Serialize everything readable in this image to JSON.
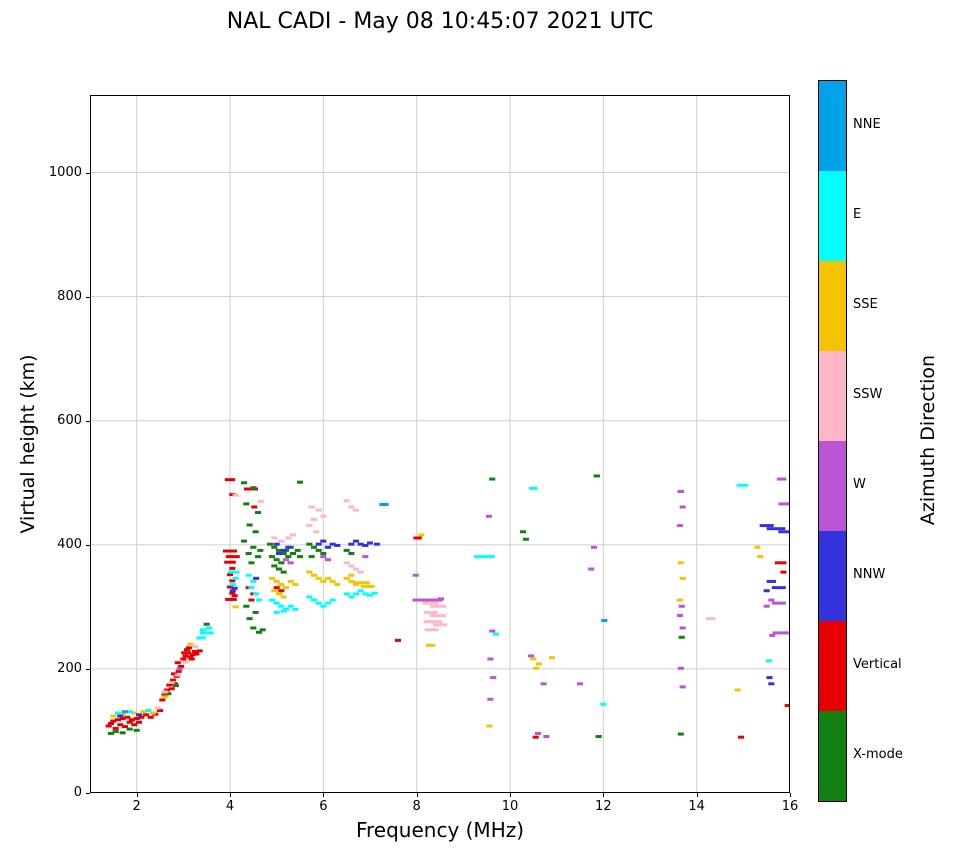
{
  "title": "NAL CADI - May 08 10:45:07 2021 UTC",
  "chart_data": {
    "type": "scatter",
    "title": "NAL CADI - May 08 10:45:07 2021 UTC",
    "xlabel": "Frequency (MHz)",
    "ylabel": "Virtual height (km)",
    "xlim": [
      1,
      16
    ],
    "ylim": [
      0,
      1125
    ],
    "xticks": [
      2,
      4,
      6,
      8,
      10,
      12,
      14,
      16
    ],
    "yticks": [
      0,
      200,
      400,
      600,
      800,
      1000
    ],
    "grid": true,
    "grid_color": "#cfcfcf",
    "marker": "horizontal-dash",
    "colorbar": {
      "label": "Azimuth Direction",
      "categories": [
        {
          "key": "NNE",
          "label": "NNE",
          "color": "#00A2E8"
        },
        {
          "key": "E",
          "label": "E",
          "color": "#00FFFF"
        },
        {
          "key": "SSE",
          "label": "SSE",
          "color": "#F5C400"
        },
        {
          "key": "SSW",
          "label": "SSW",
          "color": "#FFB6C8"
        },
        {
          "key": "W",
          "label": "W",
          "color": "#BA55D3"
        },
        {
          "key": "NNW",
          "label": "NNW",
          "color": "#3333DD"
        },
        {
          "key": "V",
          "label": "Vertical",
          "color": "#E80000"
        },
        {
          "key": "X",
          "label": "X-mode",
          "color": "#128012"
        }
      ]
    },
    "points": [
      [
        1.4,
        108,
        "V"
      ],
      [
        1.45,
        112,
        "V"
      ],
      [
        1.5,
        116,
        "V"
      ],
      [
        1.55,
        104,
        "V"
      ],
      [
        1.6,
        118,
        "V"
      ],
      [
        1.65,
        110,
        "V"
      ],
      [
        1.7,
        120,
        "V"
      ],
      [
        1.75,
        107,
        "V"
      ],
      [
        1.8,
        122,
        "V"
      ],
      [
        1.85,
        114,
        "V"
      ],
      [
        1.9,
        118,
        "V"
      ],
      [
        1.95,
        110,
        "V"
      ],
      [
        2.0,
        120,
        "V"
      ],
      [
        2.05,
        114,
        "V"
      ],
      [
        2.1,
        122,
        "V"
      ],
      [
        2.2,
        126,
        "V"
      ],
      [
        2.3,
        122,
        "V"
      ],
      [
        2.4,
        127,
        "V"
      ],
      [
        2.5,
        133,
        "V"
      ],
      [
        2.55,
        150,
        "V"
      ],
      [
        2.6,
        158,
        "V"
      ],
      [
        2.65,
        166,
        "V"
      ],
      [
        2.7,
        174,
        "V"
      ],
      [
        2.75,
        168,
        "V"
      ],
      [
        2.78,
        182,
        "V"
      ],
      [
        2.82,
        176,
        "V"
      ],
      [
        2.86,
        188,
        "V"
      ],
      [
        2.9,
        196,
        "V"
      ],
      [
        2.95,
        204,
        "V"
      ],
      [
        2.88,
        210,
        "V"
      ],
      [
        2.8,
        192,
        "V"
      ],
      [
        3.0,
        216,
        "V"
      ],
      [
        3.05,
        221,
        "V"
      ],
      [
        3.1,
        226,
        "V"
      ],
      [
        3.15,
        219,
        "V"
      ],
      [
        3.2,
        223,
        "V"
      ],
      [
        3.25,
        228,
        "V"
      ],
      [
        3.08,
        231,
        "V"
      ],
      [
        3.02,
        226,
        "V"
      ],
      [
        3.18,
        216,
        "V"
      ],
      [
        3.28,
        224,
        "V"
      ],
      [
        3.35,
        229,
        "V"
      ],
      [
        3.12,
        234,
        "V"
      ],
      [
        4.0,
        505,
        "V",
        0.22
      ],
      [
        4.05,
        481,
        "V"
      ],
      [
        4.0,
        390,
        "V",
        0.3
      ],
      [
        4.06,
        381,
        "V",
        0.3
      ],
      [
        4.0,
        372,
        "V",
        0.25
      ],
      [
        4.05,
        362,
        "V"
      ],
      [
        4.0,
        352,
        "V"
      ],
      [
        4.05,
        342,
        "V"
      ],
      [
        4.0,
        332,
        "V"
      ],
      [
        4.05,
        322,
        "V"
      ],
      [
        4.02,
        312,
        "V",
        0.25
      ],
      [
        4.1,
        318,
        "V"
      ],
      [
        4.45,
        490,
        "V",
        0.3
      ],
      [
        4.52,
        461,
        "V"
      ],
      [
        4.4,
        331,
        "V"
      ],
      [
        4.5,
        321,
        "V"
      ],
      [
        4.46,
        311,
        "V"
      ],
      [
        5.0,
        331,
        "V"
      ],
      [
        5.1,
        326,
        "V"
      ],
      [
        7.6,
        246,
        "V"
      ],
      [
        8.02,
        411,
        "V",
        0.18
      ],
      [
        10.55,
        90,
        "V"
      ],
      [
        14.95,
        90,
        "V"
      ],
      [
        15.8,
        371,
        "V",
        0.25
      ],
      [
        15.86,
        356,
        "V"
      ],
      [
        15.95,
        141,
        "V"
      ],
      [
        1.45,
        96,
        "X"
      ],
      [
        1.55,
        99,
        "X"
      ],
      [
        1.7,
        97,
        "X"
      ],
      [
        1.85,
        103,
        "X"
      ],
      [
        2.0,
        101,
        "X"
      ],
      [
        2.68,
        160,
        "X"
      ],
      [
        2.84,
        173,
        "X"
      ],
      [
        3.5,
        272,
        "X"
      ],
      [
        4.3,
        500,
        "X"
      ],
      [
        4.5,
        492,
        "X"
      ],
      [
        4.35,
        466,
        "X"
      ],
      [
        4.6,
        452,
        "X"
      ],
      [
        4.42,
        432,
        "X"
      ],
      [
        4.55,
        421,
        "X"
      ],
      [
        4.3,
        406,
        "X"
      ],
      [
        4.5,
        396,
        "X"
      ],
      [
        4.65,
        391,
        "X"
      ],
      [
        4.4,
        386,
        "X"
      ],
      [
        4.6,
        381,
        "X"
      ],
      [
        4.46,
        371,
        "X"
      ],
      [
        4.35,
        301,
        "X"
      ],
      [
        4.55,
        291,
        "X"
      ],
      [
        4.42,
        281,
        "X"
      ],
      [
        4.5,
        266,
        "X"
      ],
      [
        4.62,
        259,
        "X"
      ],
      [
        4.7,
        263,
        "X"
      ],
      [
        4.86,
        401,
        "X"
      ],
      [
        4.95,
        396,
        "X"
      ],
      [
        5.05,
        391,
        "X"
      ],
      [
        5.15,
        386,
        "X"
      ],
      [
        4.9,
        381,
        "X"
      ],
      [
        5.0,
        376,
        "X"
      ],
      [
        5.1,
        371,
        "X"
      ],
      [
        5.2,
        391,
        "X"
      ],
      [
        5.3,
        396,
        "X"
      ],
      [
        4.95,
        366,
        "X"
      ],
      [
        5.05,
        361,
        "X"
      ],
      [
        5.25,
        381,
        "X"
      ],
      [
        5.35,
        386,
        "X"
      ],
      [
        5.45,
        391,
        "X"
      ],
      [
        5.5,
        381,
        "X"
      ],
      [
        5.15,
        356,
        "X"
      ],
      [
        5.5,
        501,
        "X"
      ],
      [
        5.7,
        401,
        "X"
      ],
      [
        5.8,
        396,
        "X"
      ],
      [
        5.9,
        391,
        "X"
      ],
      [
        6.0,
        386,
        "X"
      ],
      [
        5.75,
        381,
        "X"
      ],
      [
        6.5,
        391,
        "X"
      ],
      [
        6.6,
        386,
        "X"
      ],
      [
        9.62,
        506,
        "X"
      ],
      [
        10.28,
        421,
        "X"
      ],
      [
        10.34,
        409,
        "X"
      ],
      [
        11.86,
        511,
        "X",
        0.14
      ],
      [
        11.9,
        91,
        "X"
      ],
      [
        13.68,
        251,
        "X"
      ],
      [
        13.66,
        95,
        "X"
      ],
      [
        1.5,
        124,
        "SSE"
      ],
      [
        1.7,
        127,
        "SSE"
      ],
      [
        1.95,
        129,
        "SSE"
      ],
      [
        2.15,
        131,
        "SSE"
      ],
      [
        2.35,
        129,
        "SSE"
      ],
      [
        2.62,
        155,
        "SSE"
      ],
      [
        3.15,
        240,
        "SSE"
      ],
      [
        4.12,
        300,
        "SSE"
      ],
      [
        4.9,
        346,
        "SSE"
      ],
      [
        5.0,
        341,
        "SSE"
      ],
      [
        5.1,
        336,
        "SSE"
      ],
      [
        5.2,
        331,
        "SSE"
      ],
      [
        4.95,
        326,
        "SSE"
      ],
      [
        5.05,
        321,
        "SSE"
      ],
      [
        5.3,
        341,
        "SSE"
      ],
      [
        5.4,
        336,
        "SSE"
      ],
      [
        5.15,
        316,
        "SSE"
      ],
      [
        5.8,
        351,
        "SSE"
      ],
      [
        5.9,
        346,
        "SSE"
      ],
      [
        6.0,
        341,
        "SSE"
      ],
      [
        6.1,
        346,
        "SSE"
      ],
      [
        6.2,
        341,
        "SSE"
      ],
      [
        6.3,
        336,
        "SSE"
      ],
      [
        5.7,
        356,
        "SSE"
      ],
      [
        6.5,
        346,
        "SSE"
      ],
      [
        6.6,
        341,
        "SSE"
      ],
      [
        6.7,
        336,
        "SSE"
      ],
      [
        6.82,
        339,
        "SSE",
        0.35
      ],
      [
        6.95,
        333,
        "SSE",
        0.3
      ],
      [
        6.6,
        351,
        "SSE"
      ],
      [
        8.1,
        416,
        "SSE"
      ],
      [
        8.3,
        238,
        "SSE",
        0.2
      ],
      [
        9.56,
        108,
        "SSE"
      ],
      [
        10.5,
        216,
        "SSE"
      ],
      [
        10.56,
        201,
        "SSE"
      ],
      [
        10.62,
        208,
        "SSE"
      ],
      [
        10.9,
        218,
        "SSE"
      ],
      [
        13.66,
        371,
        "SSE"
      ],
      [
        13.7,
        346,
        "SSE"
      ],
      [
        13.64,
        311,
        "SSE"
      ],
      [
        14.88,
        166,
        "SSE"
      ],
      [
        15.3,
        396,
        "SSE"
      ],
      [
        15.36,
        381,
        "SSE"
      ],
      [
        2.45,
        137,
        "SSW"
      ],
      [
        2.6,
        163,
        "SSW"
      ],
      [
        2.75,
        178,
        "SSW"
      ],
      [
        2.88,
        190,
        "SSW"
      ],
      [
        3.05,
        211,
        "SSW"
      ],
      [
        3.25,
        236,
        "SSW"
      ],
      [
        4.12,
        480,
        "SSW"
      ],
      [
        4.66,
        470,
        "SSW"
      ],
      [
        5.1,
        406,
        "SSW"
      ],
      [
        5.25,
        411,
        "SSW"
      ],
      [
        5.35,
        416,
        "SSW"
      ],
      [
        4.95,
        411,
        "SSW"
      ],
      [
        5.7,
        431,
        "SSW"
      ],
      [
        5.8,
        441,
        "SSW"
      ],
      [
        5.9,
        456,
        "SSW"
      ],
      [
        5.75,
        461,
        "SSW"
      ],
      [
        6.0,
        446,
        "SSW"
      ],
      [
        5.85,
        421,
        "SSW"
      ],
      [
        6.5,
        471,
        "SSW"
      ],
      [
        6.6,
        461,
        "SSW"
      ],
      [
        6.7,
        456,
        "SSW"
      ],
      [
        6.5,
        371,
        "SSW"
      ],
      [
        6.6,
        366,
        "SSW"
      ],
      [
        6.7,
        361,
        "SSW"
      ],
      [
        6.8,
        356,
        "SSW"
      ],
      [
        8.3,
        306,
        "SSW",
        0.35
      ],
      [
        8.46,
        301,
        "SSW",
        0.35
      ],
      [
        8.3,
        291,
        "SSW",
        0.3
      ],
      [
        8.46,
        286,
        "SSW",
        0.35
      ],
      [
        8.35,
        276,
        "SSW",
        0.4
      ],
      [
        8.5,
        271,
        "SSW",
        0.3
      ],
      [
        8.32,
        263,
        "SSW",
        0.3
      ],
      [
        14.3,
        281,
        "SSW",
        0.2
      ],
      [
        1.6,
        129,
        "E"
      ],
      [
        1.85,
        131,
        "E"
      ],
      [
        2.25,
        133,
        "E"
      ],
      [
        3.38,
        250,
        "E",
        0.2
      ],
      [
        3.5,
        258,
        "E",
        0.3
      ],
      [
        3.42,
        263,
        "E"
      ],
      [
        3.55,
        266,
        "E"
      ],
      [
        4.08,
        356,
        "E",
        0.25
      ],
      [
        4.12,
        346,
        "E"
      ],
      [
        4.06,
        336,
        "E"
      ],
      [
        4.4,
        351,
        "E"
      ],
      [
        4.5,
        341,
        "E"
      ],
      [
        4.46,
        331,
        "E"
      ],
      [
        4.56,
        321,
        "E"
      ],
      [
        4.62,
        311,
        "E"
      ],
      [
        4.9,
        311,
        "E"
      ],
      [
        5.0,
        306,
        "E"
      ],
      [
        5.1,
        301,
        "E"
      ],
      [
        5.2,
        296,
        "E"
      ],
      [
        5.3,
        301,
        "E"
      ],
      [
        5.4,
        296,
        "E"
      ],
      [
        5.0,
        291,
        "E"
      ],
      [
        5.15,
        293,
        "E"
      ],
      [
        5.8,
        311,
        "E"
      ],
      [
        5.9,
        306,
        "E"
      ],
      [
        6.0,
        301,
        "E"
      ],
      [
        6.1,
        306,
        "E"
      ],
      [
        6.2,
        311,
        "E"
      ],
      [
        5.7,
        316,
        "E"
      ],
      [
        6.5,
        321,
        "E"
      ],
      [
        6.6,
        316,
        "E"
      ],
      [
        6.7,
        321,
        "E"
      ],
      [
        6.8,
        326,
        "E"
      ],
      [
        6.9,
        321,
        "E"
      ],
      [
        7.0,
        319,
        "E"
      ],
      [
        7.1,
        322,
        "E"
      ],
      [
        9.45,
        381,
        "E",
        0.45
      ],
      [
        9.7,
        256,
        "E"
      ],
      [
        10.5,
        491,
        "E",
        0.18
      ],
      [
        12.0,
        143,
        "E"
      ],
      [
        14.98,
        496,
        "E",
        0.25
      ],
      [
        15.55,
        213,
        "E"
      ],
      [
        2.92,
        200,
        "W"
      ],
      [
        5.2,
        376,
        "W"
      ],
      [
        5.3,
        371,
        "W"
      ],
      [
        6.0,
        381,
        "W"
      ],
      [
        6.1,
        376,
        "W"
      ],
      [
        6.9,
        381,
        "W"
      ],
      [
        7.98,
        351,
        "W"
      ],
      [
        8.06,
        311,
        "W",
        0.3
      ],
      [
        8.36,
        311,
        "W",
        0.4
      ],
      [
        8.52,
        313,
        "W"
      ],
      [
        9.55,
        446,
        "W"
      ],
      [
        9.62,
        261,
        "W"
      ],
      [
        9.58,
        216,
        "W"
      ],
      [
        9.64,
        186,
        "W"
      ],
      [
        9.58,
        151,
        "W"
      ],
      [
        10.45,
        221,
        "W"
      ],
      [
        10.72,
        176,
        "W"
      ],
      [
        10.6,
        96,
        "W"
      ],
      [
        10.78,
        91,
        "W"
      ],
      [
        11.5,
        176,
        "W"
      ],
      [
        11.8,
        396,
        "W"
      ],
      [
        11.74,
        361,
        "W"
      ],
      [
        13.66,
        486,
        "W",
        0.14
      ],
      [
        13.7,
        461,
        "W"
      ],
      [
        13.64,
        431,
        "W"
      ],
      [
        13.68,
        301,
        "W"
      ],
      [
        13.64,
        286,
        "W"
      ],
      [
        13.7,
        266,
        "W"
      ],
      [
        13.66,
        201,
        "W"
      ],
      [
        13.7,
        171,
        "W"
      ],
      [
        15.82,
        506,
        "W",
        0.2
      ],
      [
        15.9,
        466,
        "W",
        0.3
      ],
      [
        15.6,
        311,
        "W"
      ],
      [
        15.76,
        306,
        "W",
        0.3
      ],
      [
        15.5,
        301,
        "W"
      ],
      [
        15.8,
        258,
        "W",
        0.35
      ],
      [
        15.62,
        254,
        "W"
      ],
      [
        1.65,
        124,
        "NNW"
      ],
      [
        2.05,
        126,
        "NNW"
      ],
      [
        4.1,
        330,
        "NNW"
      ],
      [
        4.06,
        326,
        "NNW"
      ],
      [
        4.56,
        346,
        "NNW"
      ],
      [
        5.05,
        386,
        "NNW"
      ],
      [
        5.15,
        391,
        "NNW"
      ],
      [
        5.25,
        396,
        "NNW"
      ],
      [
        5.0,
        401,
        "NNW"
      ],
      [
        5.9,
        401,
        "NNW"
      ],
      [
        6.0,
        406,
        "NNW"
      ],
      [
        6.1,
        396,
        "NNW"
      ],
      [
        6.2,
        401,
        "NNW"
      ],
      [
        6.3,
        399,
        "NNW"
      ],
      [
        6.6,
        401,
        "NNW"
      ],
      [
        6.7,
        406,
        "NNW"
      ],
      [
        6.8,
        401,
        "NNW"
      ],
      [
        6.9,
        399,
        "NNW"
      ],
      [
        7.0,
        403,
        "NNW"
      ],
      [
        7.15,
        401,
        "NNW"
      ],
      [
        15.5,
        431,
        "NNW",
        0.3
      ],
      [
        15.7,
        426,
        "NNW",
        0.4
      ],
      [
        15.9,
        421,
        "NNW",
        0.3
      ],
      [
        15.6,
        341,
        "NNW",
        0.2
      ],
      [
        15.76,
        331,
        "NNW",
        0.3
      ],
      [
        15.5,
        326,
        "NNW"
      ],
      [
        15.56,
        186,
        "NNW"
      ],
      [
        15.6,
        176,
        "NNW"
      ],
      [
        1.75,
        131,
        "NNE"
      ],
      [
        7.3,
        465,
        "NNE",
        0.2
      ],
      [
        12.02,
        278,
        "NNE"
      ]
    ]
  }
}
